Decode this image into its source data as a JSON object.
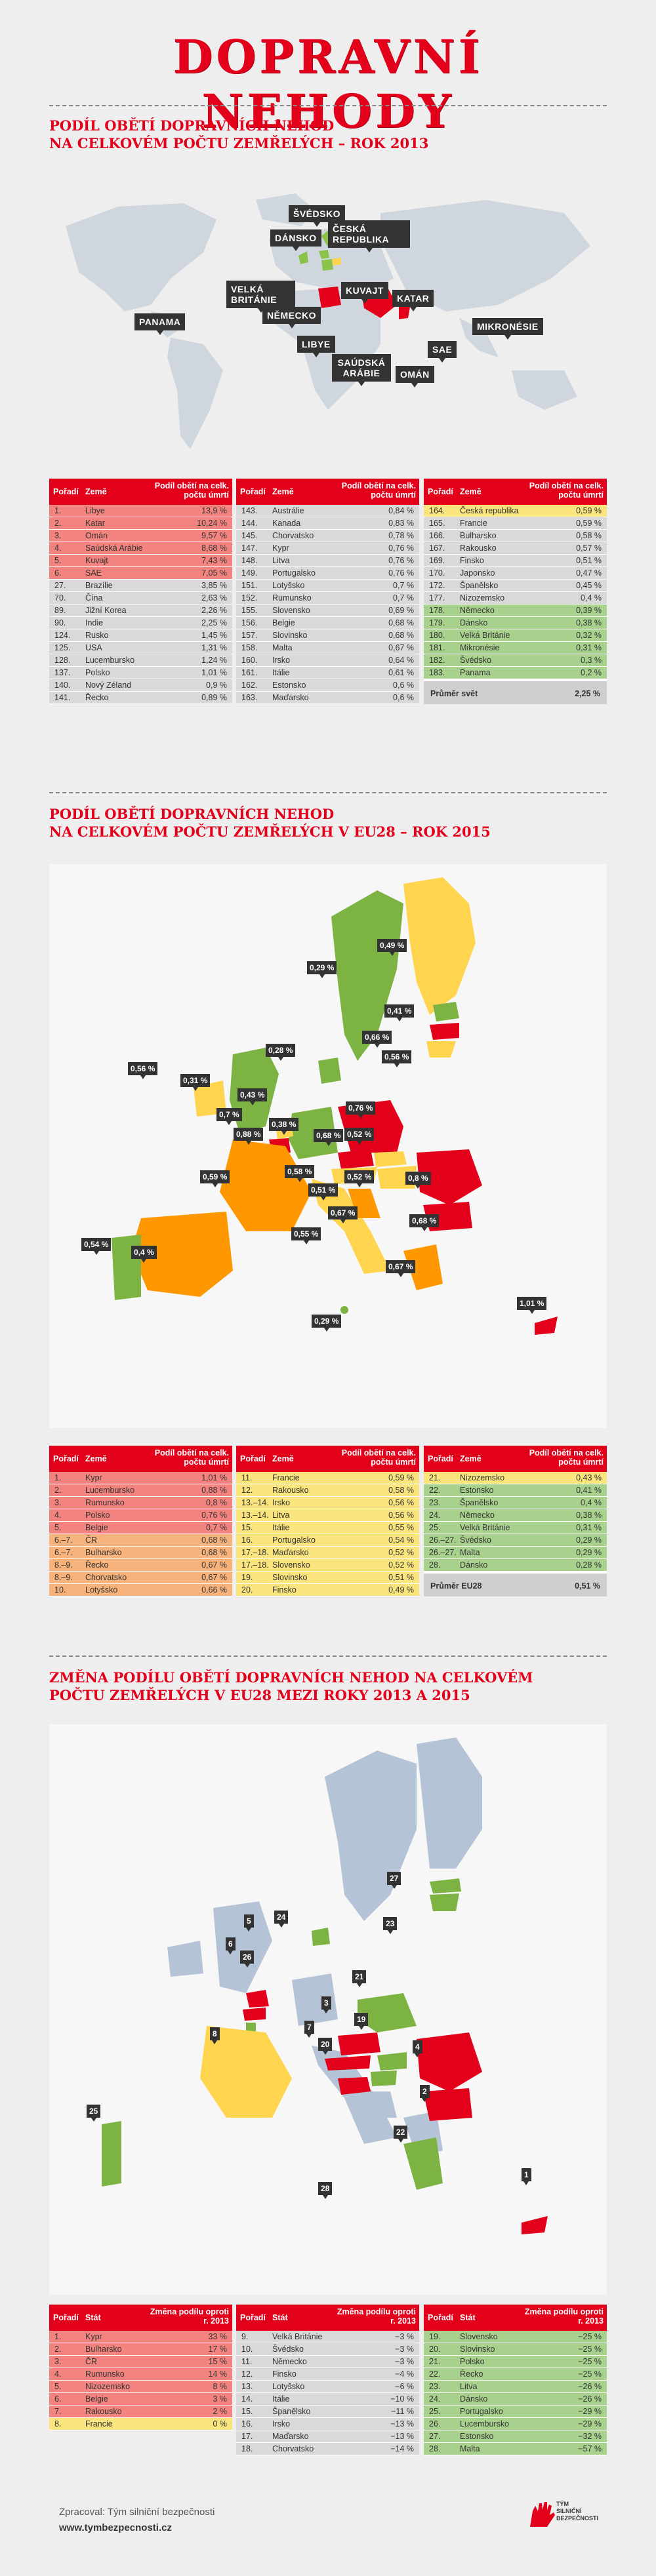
{
  "header": {
    "title": "DOPRAVNÍ NEHODY"
  },
  "colors": {
    "red": "#e2001a",
    "high": "#f2837f",
    "mid": "#f7b37b",
    "low": "#fae47d",
    "lowest": "#a9d18e",
    "neutral": "#d9d9d9"
  },
  "section1": {
    "title_line1": "PODÍL OBĚTÍ DOPRAVNÍCH NEHOD",
    "title_line2": "NA CELKOVÉM POČTU ZEMŘELÝCH – ROK 2013",
    "map_labels": [
      "ŠVÉDSKO",
      "DÁNSKO",
      "ČESKÁ REPUBLIKA",
      "VELKÁ BRITÁNIE",
      "NĚMECKO",
      "KUVAJT",
      "KATAR",
      "PANAMA",
      "LIBYE",
      "SAÚDSKÁ ARÁBIE",
      "SAE",
      "OMÁN",
      "MIKRONÉSIE"
    ],
    "headers": {
      "rank": "Pořadí",
      "country": "Země",
      "share": "Podíl obětí na celk. počtu úmrtí"
    },
    "col1": [
      {
        "rank": "1.",
        "country": "Libye",
        "value": "13,9 %",
        "c": "red"
      },
      {
        "rank": "2.",
        "country": "Katar",
        "value": "10,24 %",
        "c": "red"
      },
      {
        "rank": "3.",
        "country": "Omán",
        "value": "9,57 %",
        "c": "red"
      },
      {
        "rank": "4.",
        "country": "Saúdská Arábie",
        "value": "8,68 %",
        "c": "red"
      },
      {
        "rank": "5.",
        "country": "Kuvajt",
        "value": "7,43 %",
        "c": "red"
      },
      {
        "rank": "6.",
        "country": "SAE",
        "value": "7,05 %",
        "c": "red"
      },
      {
        "rank": "27.",
        "country": "Brazílie",
        "value": "3,85 %",
        "c": "gry"
      },
      {
        "rank": "70.",
        "country": "Čína",
        "value": "2,63 %",
        "c": "gry"
      },
      {
        "rank": "89.",
        "country": "Jižní Korea",
        "value": "2,26 %",
        "c": "gry"
      },
      {
        "rank": "90.",
        "country": "Indie",
        "value": "2,25 %",
        "c": "gry"
      },
      {
        "rank": "124.",
        "country": "Rusko",
        "value": "1,45 %",
        "c": "gry"
      },
      {
        "rank": "125.",
        "country": "USA",
        "value": "1,31 %",
        "c": "gry"
      },
      {
        "rank": "128.",
        "country": "Lucembursko",
        "value": "1,24 %",
        "c": "gry"
      },
      {
        "rank": "137.",
        "country": "Polsko",
        "value": "1,01 %",
        "c": "gry"
      },
      {
        "rank": "140.",
        "country": "Nový Zéland",
        "value": "0,9 %",
        "c": "gry"
      },
      {
        "rank": "141.",
        "country": "Řecko",
        "value": "0,89 %",
        "c": "gry"
      }
    ],
    "col2": [
      {
        "rank": "143.",
        "country": "Austrálie",
        "value": "0,84 %",
        "c": "gry"
      },
      {
        "rank": "144.",
        "country": "Kanada",
        "value": "0,83 %",
        "c": "gry"
      },
      {
        "rank": "145.",
        "country": "Chorvatsko",
        "value": "0,78 %",
        "c": "gry"
      },
      {
        "rank": "147.",
        "country": "Kypr",
        "value": "0,76 %",
        "c": "gry"
      },
      {
        "rank": "148.",
        "country": "Litva",
        "value": "0,76 %",
        "c": "gry"
      },
      {
        "rank": "149.",
        "country": "Portugalsko",
        "value": "0,76 %",
        "c": "gry"
      },
      {
        "rank": "151.",
        "country": "Lotyšsko",
        "value": "0,7 %",
        "c": "gry"
      },
      {
        "rank": "152.",
        "country": "Rumunsko",
        "value": "0,7 %",
        "c": "gry"
      },
      {
        "rank": "155.",
        "country": "Slovensko",
        "value": "0,69 %",
        "c": "gry"
      },
      {
        "rank": "156.",
        "country": "Belgie",
        "value": "0,68 %",
        "c": "gry"
      },
      {
        "rank": "157.",
        "country": "Slovinsko",
        "value": "0,68 %",
        "c": "gry"
      },
      {
        "rank": "158.",
        "country": "Malta",
        "value": "0,67 %",
        "c": "gry"
      },
      {
        "rank": "160.",
        "country": "Irsko",
        "value": "0,64 %",
        "c": "gry"
      },
      {
        "rank": "161.",
        "country": "Itálie",
        "value": "0,61 %",
        "c": "gry"
      },
      {
        "rank": "162.",
        "country": "Estonsko",
        "value": "0,6 %",
        "c": "gry"
      },
      {
        "rank": "163.",
        "country": "Maďarsko",
        "value": "0,6 %",
        "c": "gry"
      }
    ],
    "col3": [
      {
        "rank": "164.",
        "country": "Česká republika",
        "value": "0,59 %",
        "c": "yel"
      },
      {
        "rank": "165.",
        "country": "Francie",
        "value": "0,59 %",
        "c": "gry"
      },
      {
        "rank": "166.",
        "country": "Bulharsko",
        "value": "0,58 %",
        "c": "gry"
      },
      {
        "rank": "167.",
        "country": "Rakousko",
        "value": "0,57 %",
        "c": "gry"
      },
      {
        "rank": "169.",
        "country": "Finsko",
        "value": "0,51 %",
        "c": "gry"
      },
      {
        "rank": "170.",
        "country": "Japonsko",
        "value": "0,47 %",
        "c": "gry"
      },
      {
        "rank": "172.",
        "country": "Španělsko",
        "value": "0,45 %",
        "c": "gry"
      },
      {
        "rank": "177.",
        "country": "Nizozemsko",
        "value": "0,4 %",
        "c": "gry"
      },
      {
        "rank": "178.",
        "country": "Německo",
        "value": "0,39 %",
        "c": "grn"
      },
      {
        "rank": "179.",
        "country": "Dánsko",
        "value": "0,38 %",
        "c": "grn"
      },
      {
        "rank": "180.",
        "country": "Velká Británie",
        "value": "0,32 %",
        "c": "grn"
      },
      {
        "rank": "181.",
        "country": "Mikronésie",
        "value": "0,31 %",
        "c": "grn"
      },
      {
        "rank": "182.",
        "country": "Švédsko",
        "value": "0,3 %",
        "c": "grn"
      },
      {
        "rank": "183.",
        "country": "Panama",
        "value": "0,2 %",
        "c": "grn"
      }
    ],
    "average": {
      "label": "Průměr svět",
      "value": "2,25 %"
    }
  },
  "section2": {
    "title_line1": "PODÍL OBĚTÍ DOPRAVNÍCH NEHOD",
    "title_line2": "NA CELKOVÉM POČTU ZEMŘELÝCH V EU28 – ROK 2015",
    "map_values": [
      "0,49 %",
      "0,29 %",
      "0,41 %",
      "0,66 %",
      "0,56 %",
      "0,28 %",
      "0,56 %",
      "0,31 %",
      "0,43 %",
      "0,7 %",
      "0,38 %",
      "0,76 %",
      "0,68 %",
      "0,52 %",
      "0,88 %",
      "0,59 %",
      "0,58 %",
      "0,51 %",
      "0,52 %",
      "0,8 %",
      "0,67 %",
      "0,68 %",
      "0,55 %",
      "0,54 %",
      "0,4 %",
      "0,67 %",
      "0,29 %",
      "1,01 %"
    ],
    "headers": {
      "rank": "Pořadí",
      "country": "Země",
      "share": "Podíl obětí na celk. počtu úmrtí"
    },
    "col1": [
      {
        "rank": "1.",
        "country": "Kypr",
        "value": "1,01 %",
        "c": "red"
      },
      {
        "rank": "2.",
        "country": "Lucembursko",
        "value": "0,88 %",
        "c": "red"
      },
      {
        "rank": "3.",
        "country": "Rumunsko",
        "value": "0,8 %",
        "c": "red"
      },
      {
        "rank": "4.",
        "country": "Polsko",
        "value": "0,76 %",
        "c": "red"
      },
      {
        "rank": "5.",
        "country": "Belgie",
        "value": "0,7 %",
        "c": "red"
      },
      {
        "rank": "6.–7.",
        "country": "ČR",
        "value": "0,68 %",
        "c": "ora"
      },
      {
        "rank": "6.–7.",
        "country": "Bulharsko",
        "value": "0,68 %",
        "c": "ora"
      },
      {
        "rank": "8.–9.",
        "country": "Řecko",
        "value": "0,67 %",
        "c": "ora"
      },
      {
        "rank": "8.–9.",
        "country": "Chorvatsko",
        "value": "0,67 %",
        "c": "ora"
      },
      {
        "rank": "10.",
        "country": "Lotyšsko",
        "value": "0,66 %",
        "c": "ora"
      }
    ],
    "col2": [
      {
        "rank": "11.",
        "country": "Francie",
        "value": "0,59 %",
        "c": "yel"
      },
      {
        "rank": "12.",
        "country": "Rakousko",
        "value": "0,58 %",
        "c": "yel"
      },
      {
        "rank": "13.–14.",
        "country": "Irsko",
        "value": "0,56 %",
        "c": "yel"
      },
      {
        "rank": "13.–14.",
        "country": "Litva",
        "value": "0,56 %",
        "c": "yel"
      },
      {
        "rank": "15.",
        "country": "Itálie",
        "value": "0,55 %",
        "c": "yel"
      },
      {
        "rank": "16.",
        "country": "Portugalsko",
        "value": "0,54 %",
        "c": "yel"
      },
      {
        "rank": "17.–18.",
        "country": "Maďarsko",
        "value": "0,52 %",
        "c": "yel"
      },
      {
        "rank": "17.–18.",
        "country": "Slovensko",
        "value": "0,52 %",
        "c": "yel"
      },
      {
        "rank": "19.",
        "country": "Slovinsko",
        "value": "0,51 %",
        "c": "yel"
      },
      {
        "rank": "20.",
        "country": "Finsko",
        "value": "0,49 %",
        "c": "yel"
      }
    ],
    "col3": [
      {
        "rank": "21.",
        "country": "Nizozemsko",
        "value": "0,43 %",
        "c": "yel"
      },
      {
        "rank": "22.",
        "country": "Estonsko",
        "value": "0,41 %",
        "c": "grn"
      },
      {
        "rank": "23.",
        "country": "Španělsko",
        "value": "0,4 %",
        "c": "grn"
      },
      {
        "rank": "24.",
        "country": "Německo",
        "value": "0,38 %",
        "c": "grn"
      },
      {
        "rank": "25.",
        "country": "Velká Británie",
        "value": "0,31 %",
        "c": "grn"
      },
      {
        "rank": "26.–27.",
        "country": "Švédsko",
        "value": "0,29 %",
        "c": "grn"
      },
      {
        "rank": "26.–27.",
        "country": "Malta",
        "value": "0,29 %",
        "c": "grn"
      },
      {
        "rank": "28.",
        "country": "Dánsko",
        "value": "0,28 %",
        "c": "grn"
      }
    ],
    "average": {
      "label": "Průměr EU28",
      "value": "0,51 %"
    }
  },
  "section3": {
    "title_line1": "ZMĚNA PODÍLU OBĚTÍ DOPRAVNÍCH NEHOD NA CELKOVÉM",
    "title_line2": "POČTU ZEMŘELÝCH V EU28 MEZI ROKY 2013 A 2015",
    "map_ranks": [
      "27",
      "24",
      "23",
      "5",
      "6",
      "26",
      "21",
      "3",
      "7",
      "19",
      "20",
      "8",
      "4",
      "2",
      "25",
      "22",
      "28",
      "1"
    ],
    "headers": {
      "rank": "Pořadí",
      "country": "Stát",
      "change": "Změna podílu oproti r. 2013"
    },
    "col1": [
      {
        "rank": "1.",
        "country": "Kypr",
        "value": "33 %",
        "c": "red"
      },
      {
        "rank": "2.",
        "country": "Bulharsko",
        "value": "17 %",
        "c": "red"
      },
      {
        "rank": "3.",
        "country": "ČR",
        "value": "15 %",
        "c": "red"
      },
      {
        "rank": "4.",
        "country": "Rumunsko",
        "value": "14 %",
        "c": "red"
      },
      {
        "rank": "5.",
        "country": "Nizozemsko",
        "value": "8 %",
        "c": "red"
      },
      {
        "rank": "6.",
        "country": "Belgie",
        "value": "3 %",
        "c": "red"
      },
      {
        "rank": "7.",
        "country": "Rakousko",
        "value": "2 %",
        "c": "red"
      },
      {
        "rank": "8.",
        "country": "Francie",
        "value": "0 %",
        "c": "yel"
      }
    ],
    "col2": [
      {
        "rank": "9.",
        "country": "Velká Británie",
        "value": "−3 %",
        "c": "gry"
      },
      {
        "rank": "10.",
        "country": "Švédsko",
        "value": "−3 %",
        "c": "gry"
      },
      {
        "rank": "11.",
        "country": "Německo",
        "value": "−3 %",
        "c": "gry"
      },
      {
        "rank": "12.",
        "country": "Finsko",
        "value": "−4 %",
        "c": "gry"
      },
      {
        "rank": "13.",
        "country": "Lotyšsko",
        "value": "−6 %",
        "c": "gry"
      },
      {
        "rank": "14.",
        "country": "Itálie",
        "value": "−10 %",
        "c": "gry"
      },
      {
        "rank": "15.",
        "country": "Španělsko",
        "value": "−11 %",
        "c": "gry"
      },
      {
        "rank": "16.",
        "country": "Irsko",
        "value": "−13 %",
        "c": "gry"
      },
      {
        "rank": "17.",
        "country": "Maďarsko",
        "value": "−13 %",
        "c": "gry"
      },
      {
        "rank": "18.",
        "country": "Chorvatsko",
        "value": "−14 %",
        "c": "gry"
      }
    ],
    "col3": [
      {
        "rank": "19.",
        "country": "Slovensko",
        "value": "−25 %",
        "c": "grn"
      },
      {
        "rank": "20.",
        "country": "Slovinsko",
        "value": "−25 %",
        "c": "grn"
      },
      {
        "rank": "21.",
        "country": "Polsko",
        "value": "−25 %",
        "c": "grn"
      },
      {
        "rank": "22.",
        "country": "Řecko",
        "value": "−25 %",
        "c": "grn"
      },
      {
        "rank": "23.",
        "country": "Litva",
        "value": "−26 %",
        "c": "grn"
      },
      {
        "rank": "24.",
        "country": "Dánsko",
        "value": "−26 %",
        "c": "grn"
      },
      {
        "rank": "25.",
        "country": "Portugalsko",
        "value": "−29 %",
        "c": "grn"
      },
      {
        "rank": "26.",
        "country": "Lucembursko",
        "value": "−29 %",
        "c": "grn"
      },
      {
        "rank": "27.",
        "country": "Estonsko",
        "value": "−32 %",
        "c": "grn"
      },
      {
        "rank": "28.",
        "country": "Malta",
        "value": "−57 %",
        "c": "grn"
      }
    ]
  },
  "footer": {
    "line1": "Zpracoval: Tým silniční bezpečnosti",
    "line2": "www.tymbezpecnosti.cz",
    "logo_text": "TÝM SILNIČNÍ BEZPEČNOSTI"
  }
}
